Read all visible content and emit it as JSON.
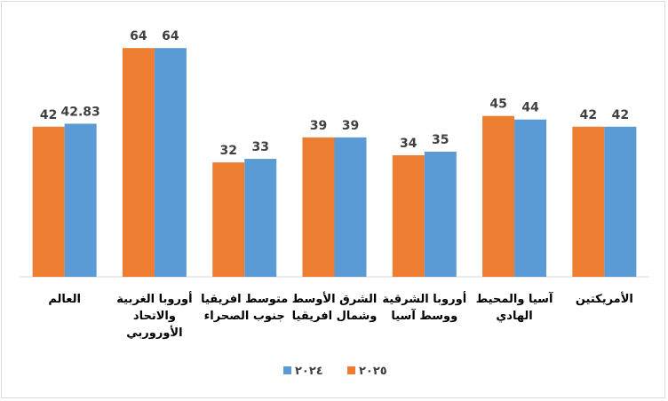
{
  "chart_data": {
    "type": "bar",
    "categories": [
      "العالم",
      "أوروبا الغربية والاتحاد الأوروربي",
      "متوسط افريقيا جنوب الصحراء",
      "الشرق الأوسط وشمال افريقيا",
      "أوروبا الشرقية ووسط آسيا",
      "آسيا والمحيط الهادي",
      "الأمريكتين"
    ],
    "category_lines": [
      [
        "العالم"
      ],
      [
        "أوروبا الغربية",
        "والاتحاد",
        "الأوروربي"
      ],
      [
        "متوسط افريقيا",
        "جنوب الصحراء"
      ],
      [
        "الشرق الأوسط",
        "وشمال افريقيا"
      ],
      [
        "أوروبا الشرقية",
        "ووسط آسيا"
      ],
      [
        "آسيا والمحيط",
        "الهادي"
      ],
      [
        "الأمريكتين"
      ]
    ],
    "series": [
      {
        "name": "٢٠٢٥",
        "color": "#ED7D31",
        "values": [
          42,
          64,
          32,
          39,
          34,
          45,
          42
        ],
        "labels": [
          "42",
          "64",
          "32",
          "39",
          "34",
          "45",
          "42"
        ]
      },
      {
        "name": "٢٠٢٤",
        "color": "#5B9BD5",
        "values": [
          42.83,
          64,
          33,
          39,
          35,
          44,
          42
        ],
        "labels": [
          "42.83",
          "64",
          "33",
          "39",
          "35",
          "44",
          "42"
        ]
      }
    ],
    "ylim": [
      0,
      70
    ],
    "grid": false,
    "legend_position": "bottom",
    "title": "",
    "xlabel": "",
    "ylabel": ""
  }
}
